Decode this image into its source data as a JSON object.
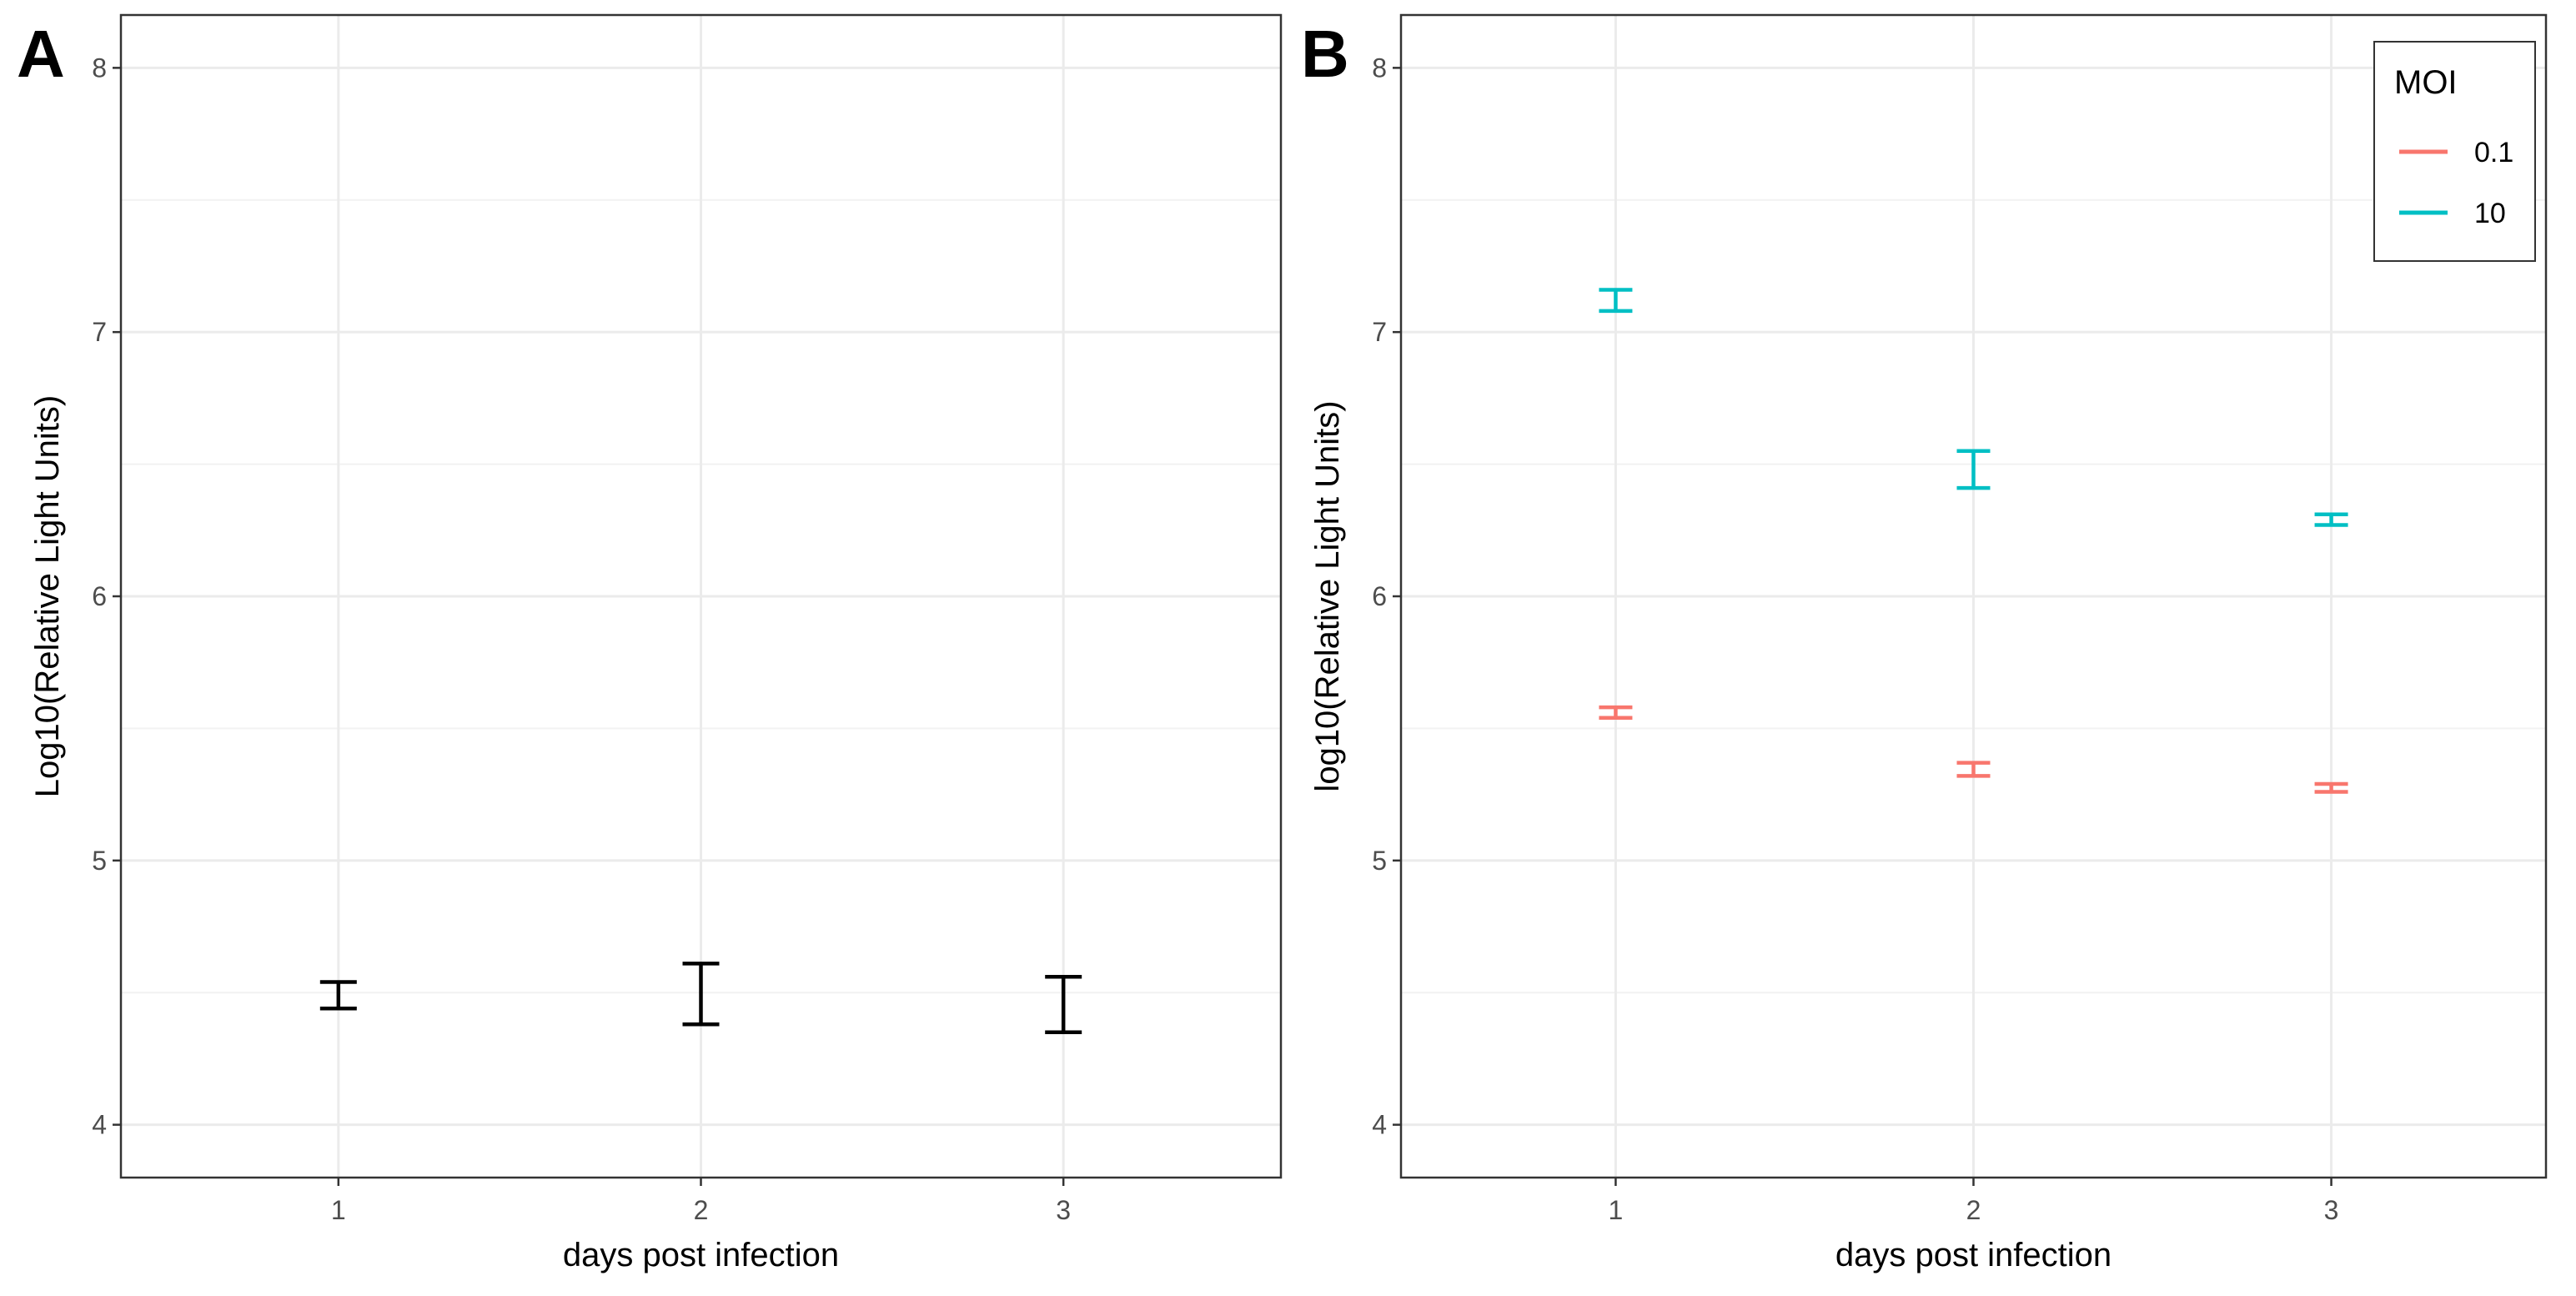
{
  "chart_data": [
    {
      "panel": "A",
      "type": "errorbar",
      "title": "",
      "xlabel": "days post infection",
      "ylabel": "Log10(Relative Light Units)",
      "categories": [
        "1",
        "2",
        "3"
      ],
      "ylim": [
        3.8,
        8.2
      ],
      "yticks": [
        "4",
        "5",
        "6",
        "7",
        "8"
      ],
      "grid": true,
      "series": [
        {
          "name": "",
          "color": "#000000",
          "lower": [
            4.44,
            4.38,
            4.35
          ],
          "upper": [
            4.54,
            4.61,
            4.56
          ]
        }
      ]
    },
    {
      "panel": "B",
      "type": "errorbar",
      "title": "",
      "xlabel": "days post infection",
      "ylabel": "log10(Relative Light Units)",
      "categories": [
        "1",
        "2",
        "3"
      ],
      "ylim": [
        3.8,
        8.2
      ],
      "yticks": [
        "4",
        "5",
        "6",
        "7",
        "8"
      ],
      "grid": true,
      "legend": {
        "title": "MOI",
        "position": "top-right"
      },
      "series": [
        {
          "name": "0.1",
          "color": "#F8766D",
          "lower": [
            5.54,
            5.32,
            5.26
          ],
          "upper": [
            5.58,
            5.37,
            5.29
          ]
        },
        {
          "name": "10",
          "color": "#00BFC4",
          "lower": [
            7.08,
            6.41,
            6.27
          ],
          "upper": [
            7.16,
            6.55,
            6.31
          ]
        }
      ]
    }
  ]
}
